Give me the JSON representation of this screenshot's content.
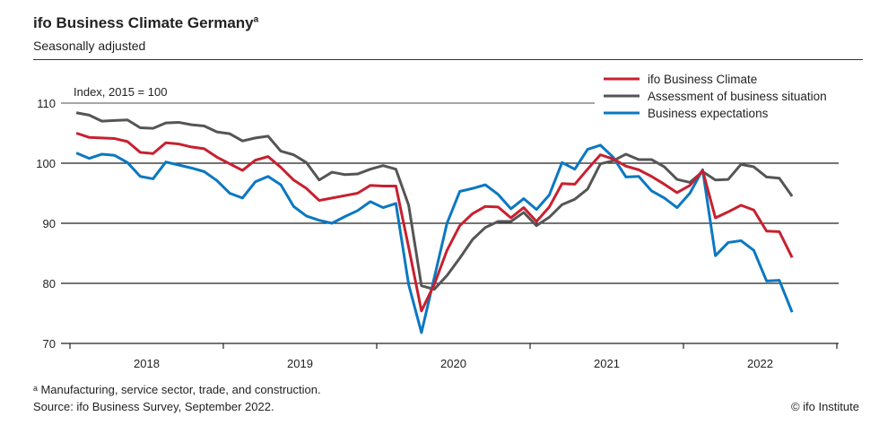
{
  "title": "ifo Business Climate Germany",
  "title_footnote_mark": "a",
  "subtitle": "Seasonally adjusted",
  "footnote": "ᵃ Manufacturing, service sector, trade, and construction.",
  "source": "Source: ifo Business Survey, September 2022.",
  "credit": "© ifo Institute",
  "chart_data": {
    "type": "line",
    "index_note": "Index, 2015 = 100",
    "x_start": "2018-01",
    "x_end": "2022-09",
    "x_frequency": "monthly",
    "x_tick_labels": [
      "2018",
      "2019",
      "2020",
      "2021",
      "2022"
    ],
    "y_ticks": [
      70,
      80,
      90,
      100,
      110
    ],
    "ylim": [
      70,
      110
    ],
    "grid": "horizontal",
    "legend_position": "top-right",
    "series": [
      {
        "name": "ifo Business Climate",
        "color": "#c8202f",
        "values": [
          105.0,
          104.3,
          104.2,
          104.1,
          103.6,
          101.8,
          101.6,
          103.4,
          103.2,
          102.7,
          102.4,
          101.0,
          99.9,
          98.8,
          100.5,
          101.1,
          99.3,
          97.2,
          95.8,
          93.8,
          94.2,
          94.6,
          95.0,
          96.3,
          96.2,
          96.2,
          86.0,
          75.4,
          79.8,
          85.5,
          89.6,
          91.6,
          92.8,
          92.7,
          90.9,
          92.6,
          90.3,
          92.7,
          96.6,
          96.5,
          99.0,
          101.4,
          100.7,
          99.5,
          98.9,
          97.8,
          96.5,
          95.1,
          96.3,
          98.8,
          90.9,
          91.9,
          93.0,
          92.2,
          88.7,
          88.6,
          84.3
        ]
      },
      {
        "name": "Assessment of business situation",
        "color": "#555555",
        "values": [
          108.4,
          108.0,
          107.0,
          107.1,
          107.2,
          105.9,
          105.8,
          106.7,
          106.8,
          106.4,
          106.2,
          105.2,
          104.9,
          103.7,
          104.2,
          104.5,
          102.0,
          101.4,
          100.1,
          97.2,
          98.5,
          98.1,
          98.2,
          99.0,
          99.6,
          99.0,
          93.0,
          79.6,
          79.0,
          81.3,
          84.2,
          87.3,
          89.3,
          90.3,
          90.3,
          91.8,
          89.6,
          91.0,
          93.1,
          94.0,
          95.7,
          99.9,
          100.4,
          101.5,
          100.6,
          100.6,
          99.4,
          97.3,
          96.8,
          98.6,
          97.2,
          97.3,
          99.8,
          99.4,
          97.7,
          97.5,
          94.5
        ]
      },
      {
        "name": "Business expectations",
        "color": "#0a78c2",
        "values": [
          101.7,
          100.8,
          101.5,
          101.3,
          100.1,
          97.8,
          97.4,
          100.2,
          99.7,
          99.2,
          98.6,
          97.1,
          95.0,
          94.2,
          96.9,
          97.8,
          96.4,
          92.8,
          91.2,
          90.5,
          90.0,
          91.1,
          92.1,
          93.6,
          92.6,
          93.3,
          79.8,
          71.8,
          80.9,
          90.0,
          95.3,
          95.8,
          96.4,
          94.8,
          92.4,
          94.1,
          92.3,
          94.7,
          100.1,
          99.0,
          102.3,
          103.0,
          101.0,
          97.7,
          97.8,
          95.4,
          94.2,
          92.6,
          95.0,
          98.9,
          84.6,
          86.8,
          87.1,
          85.5,
          80.4,
          80.5,
          75.2
        ]
      }
    ]
  }
}
